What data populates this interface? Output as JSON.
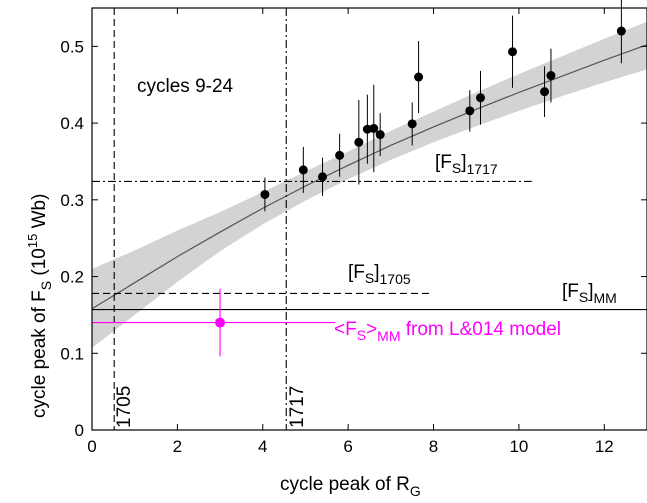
{
  "chart_data": {
    "type": "scatter",
    "title": "",
    "xlabel": "cycle peak of R",
    "xlabel_sub": "G",
    "ylabel_parts": [
      "cycle peak of F",
      "S",
      " (10",
      "15",
      " Wb)"
    ],
    "xlim": [
      0,
      13
    ],
    "ylim": [
      0,
      0.55
    ],
    "xticks": [
      0,
      2,
      4,
      6,
      8,
      10,
      12
    ],
    "yticks": [
      0,
      0.1,
      0.2,
      0.3,
      0.4,
      0.5
    ],
    "ytick_labels": [
      "0",
      "0.1",
      "0.2",
      "0.3",
      "0.4",
      "0.5"
    ],
    "grid": false,
    "series": [
      {
        "name": "cycles 9-24",
        "color": "#000000",
        "points": [
          {
            "x": 4.05,
            "y": 0.307,
            "err": 0.022
          },
          {
            "x": 4.95,
            "y": 0.339,
            "err": 0.03
          },
          {
            "x": 5.4,
            "y": 0.33,
            "err": 0.025
          },
          {
            "x": 5.8,
            "y": 0.358,
            "err": 0.028
          },
          {
            "x": 6.25,
            "y": 0.375,
            "err": 0.055
          },
          {
            "x": 6.45,
            "y": 0.392,
            "err": 0.045
          },
          {
            "x": 6.6,
            "y": 0.393,
            "err": 0.057
          },
          {
            "x": 6.75,
            "y": 0.385,
            "err": 0.028
          },
          {
            "x": 7.5,
            "y": 0.399,
            "err": 0.028
          },
          {
            "x": 7.65,
            "y": 0.46,
            "err": 0.047
          },
          {
            "x": 8.85,
            "y": 0.416,
            "err": 0.027
          },
          {
            "x": 9.1,
            "y": 0.433,
            "err": 0.035
          },
          {
            "x": 9.85,
            "y": 0.493,
            "err": 0.047
          },
          {
            "x": 10.6,
            "y": 0.441,
            "err": 0.033
          },
          {
            "x": 10.75,
            "y": 0.462,
            "err": 0.035
          },
          {
            "x": 12.4,
            "y": 0.52,
            "err": 0.042
          }
        ]
      },
      {
        "name": "<FS>MM from L&014 model",
        "color": "#ff00ff",
        "points": [
          {
            "x": 3.0,
            "y": 0.14,
            "xerr": 0,
            "yerr": 0.044
          }
        ]
      }
    ],
    "fit_curve": {
      "color": "#555555",
      "band_color": "#d3d3d3",
      "x": [
        0,
        1,
        2,
        3,
        4,
        5,
        6,
        7,
        8,
        9,
        10,
        11,
        12,
        13
      ],
      "y": [
        0.158,
        0.192,
        0.226,
        0.258,
        0.289,
        0.318,
        0.345,
        0.371,
        0.395,
        0.418,
        0.44,
        0.461,
        0.482,
        0.502
      ],
      "band_lower": [
        0.107,
        0.15,
        0.193,
        0.233,
        0.268,
        0.299,
        0.327,
        0.352,
        0.375,
        0.396,
        0.416,
        0.435,
        0.453,
        0.47
      ],
      "band_upper": [
        0.21,
        0.234,
        0.26,
        0.284,
        0.31,
        0.337,
        0.363,
        0.39,
        0.415,
        0.44,
        0.464,
        0.487,
        0.51,
        0.532
      ]
    },
    "reference_lines": {
      "v1705": {
        "x": 0.52,
        "label": "1705",
        "style": "dashed"
      },
      "v1717": {
        "x": 4.55,
        "label": "1717",
        "style": "dashdot"
      },
      "h1717": {
        "y": 0.324,
        "x_end": 10.3,
        "label_main": "[F",
        "label_sub": "S",
        "label_tail": "]",
        "label_sub2": "1717",
        "style": "dashdot"
      },
      "h1705": {
        "y": 0.178,
        "x_end": 7.9,
        "label_main": "[F",
        "label_sub": "S",
        "label_tail": "]",
        "label_sub2": "1705",
        "style": "dashed"
      },
      "hMM": {
        "y": 0.157,
        "label_main": "[F",
        "label_sub": "S",
        "label_tail": "]",
        "label_sub2": "MM",
        "style": "solid"
      }
    },
    "annotations": {
      "cycles_text": "cycles 9-24",
      "magenta_label_lt": "<F",
      "magenta_label_sub": "S",
      "magenta_label_gt": ">",
      "magenta_label_sub2": "MM",
      "magenta_label_tail": " from L&014 model"
    }
  }
}
